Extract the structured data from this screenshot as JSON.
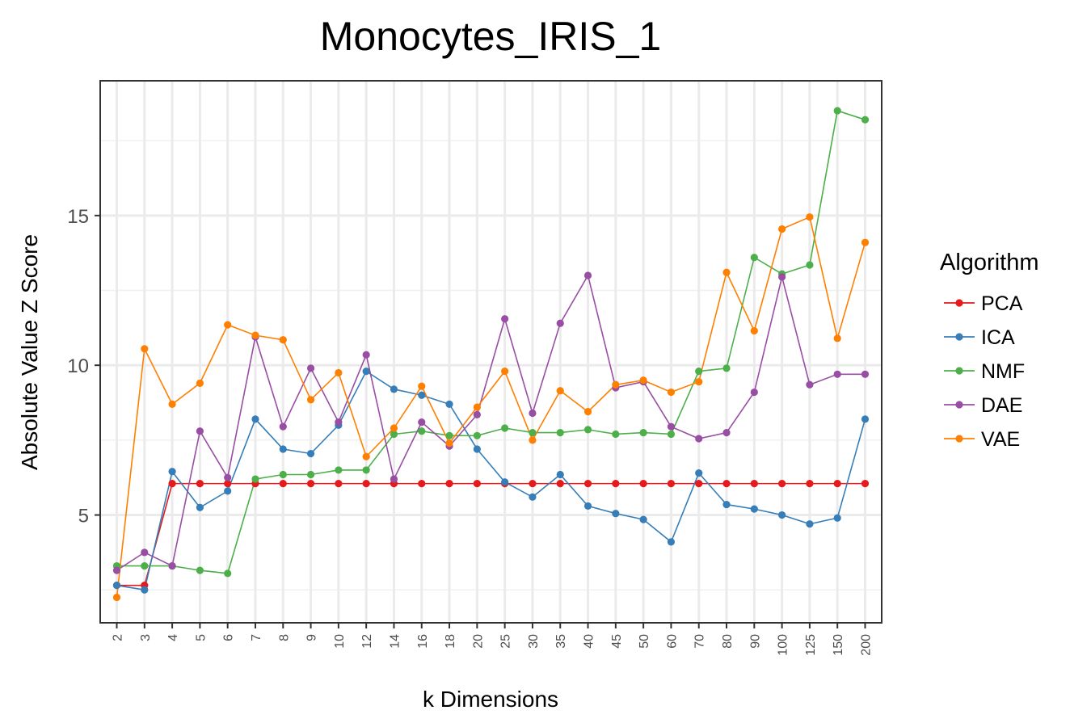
{
  "chart_data": {
    "type": "line",
    "title": "Monocytes_IRIS_1",
    "xlabel": "k Dimensions",
    "ylabel": "Absolute Value Z Score",
    "categories": [
      "2",
      "3",
      "4",
      "5",
      "6",
      "7",
      "8",
      "9",
      "10",
      "12",
      "14",
      "16",
      "18",
      "20",
      "25",
      "30",
      "35",
      "40",
      "45",
      "50",
      "60",
      "70",
      "80",
      "90",
      "100",
      "125",
      "150",
      "200"
    ],
    "ylim": [
      1.4,
      19.5
    ],
    "yticks": [
      5,
      10,
      15
    ],
    "grid": true,
    "legend": {
      "title": "Algorithm",
      "position": "right"
    },
    "series": [
      {
        "name": "PCA",
        "color": "#e41a1c",
        "values": [
          2.65,
          2.65,
          6.05,
          6.05,
          6.05,
          6.05,
          6.05,
          6.05,
          6.05,
          6.05,
          6.05,
          6.05,
          6.05,
          6.05,
          6.05,
          6.05,
          6.05,
          6.05,
          6.05,
          6.05,
          6.05,
          6.05,
          6.05,
          6.05,
          6.05,
          6.05,
          6.05,
          6.05
        ]
      },
      {
        "name": "ICA",
        "color": "#377eb8",
        "values": [
          2.65,
          2.5,
          6.45,
          5.25,
          5.8,
          8.2,
          7.2,
          7.05,
          8.0,
          9.8,
          9.2,
          9.0,
          8.7,
          7.2,
          6.1,
          5.6,
          6.35,
          5.3,
          5.05,
          4.85,
          4.1,
          6.4,
          5.35,
          5.2,
          5.0,
          4.7,
          4.9,
          8.2
        ]
      },
      {
        "name": "NMF",
        "color": "#4daf4a",
        "values": [
          3.3,
          3.3,
          3.3,
          3.15,
          3.05,
          6.2,
          6.35,
          6.35,
          6.5,
          6.5,
          7.7,
          7.8,
          7.65,
          7.65,
          7.9,
          7.75,
          7.75,
          7.85,
          7.7,
          7.75,
          7.7,
          9.8,
          9.9,
          13.6,
          13.05,
          13.35,
          18.5,
          18.2
        ]
      },
      {
        "name": "DAE",
        "color": "#984ea3",
        "values": [
          3.15,
          3.75,
          3.3,
          7.8,
          6.25,
          10.95,
          7.95,
          9.9,
          8.1,
          10.35,
          6.2,
          8.1,
          7.3,
          8.35,
          11.55,
          8.4,
          11.4,
          13.0,
          9.25,
          9.45,
          7.95,
          7.55,
          7.75,
          9.1,
          12.95,
          9.35,
          9.7,
          9.7
        ]
      },
      {
        "name": "VAE",
        "color": "#ff7f00",
        "values": [
          2.25,
          10.55,
          8.7,
          9.4,
          11.35,
          11.0,
          10.85,
          8.85,
          9.75,
          6.95,
          7.9,
          9.3,
          7.4,
          8.6,
          9.8,
          7.5,
          9.15,
          8.45,
          9.35,
          9.5,
          9.1,
          9.45,
          13.1,
          11.15,
          14.55,
          14.95,
          10.9,
          14.1
        ]
      }
    ]
  }
}
